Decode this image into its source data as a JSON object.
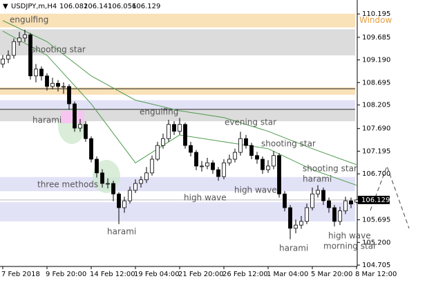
{
  "chart_data": {
    "type": "candlestick",
    "symbol": "USDJPY,m,H4",
    "header_values": [
      106.082,
      106.141,
      106.056,
      106.129
    ],
    "categories": [
      "7 Feb 2018",
      null,
      null,
      null,
      null,
      null,
      null,
      null,
      "9 Feb 20:00",
      null,
      null,
      null,
      null,
      null,
      null,
      null,
      "14 Feb 12:00",
      null,
      null,
      null,
      null,
      null,
      null,
      null,
      "19 Feb 04:00",
      null,
      null,
      null,
      null,
      null,
      null,
      null,
      "21 Feb 20:00",
      null,
      null,
      null,
      null,
      null,
      null,
      null,
      "26 Feb 12:00",
      null,
      null,
      null,
      null,
      null,
      null,
      null,
      "1 Mar 04:00",
      null,
      null,
      null,
      null,
      null,
      null,
      null,
      "5 Mar 20:00",
      null,
      null,
      null,
      null,
      null,
      null,
      null,
      "8 Mar 12:00"
    ],
    "open": [
      109.1,
      109.21,
      109.29,
      109.59,
      109.67,
      109.74,
      108.84,
      108.99,
      108.84,
      108.61,
      108.68,
      108.61,
      108.61,
      108.23,
      107.7,
      107.78,
      107.47,
      107.02,
      106.72,
      106.49,
      106.49,
      106.26,
      105.96,
      106.11,
      106.34,
      106.49,
      106.57,
      106.72,
      107.02,
      107.32,
      107.47,
      107.78,
      107.63,
      107.78,
      107.32,
      107.17,
      106.87,
      106.87,
      106.94,
      106.79,
      106.64,
      106.94,
      107.02,
      107.17,
      107.47,
      107.32,
      107.1,
      107.02,
      106.79,
      106.87,
      107.1,
      106.26,
      105.96,
      105.51,
      105.58,
      105.66,
      105.96,
      106.26,
      106.34,
      106.11,
      105.96,
      105.66,
      105.89,
      106.11,
      106.082
    ],
    "high": [
      109.3,
      109.4,
      109.66,
      109.8,
      109.85,
      109.78,
      109.1,
      109.05,
      108.9,
      108.8,
      108.75,
      108.7,
      108.66,
      108.28,
      107.9,
      107.85,
      107.52,
      107.08,
      106.8,
      106.6,
      106.55,
      106.3,
      106.2,
      106.42,
      106.58,
      106.65,
      106.85,
      107.1,
      107.4,
      107.58,
      107.88,
      107.85,
      107.92,
      107.82,
      107.4,
      107.22,
      106.98,
      107.05,
      107.0,
      106.85,
      107.02,
      107.12,
      107.25,
      107.62,
      107.55,
      107.38,
      107.18,
      107.08,
      107.0,
      107.2,
      107.15,
      106.32,
      106.02,
      105.7,
      105.78,
      106.05,
      106.4,
      106.45,
      106.4,
      106.18,
      106.02,
      105.98,
      106.2,
      106.18,
      106.141
    ],
    "low": [
      109.02,
      109.12,
      109.22,
      109.5,
      109.58,
      108.76,
      108.7,
      108.74,
      108.52,
      108.55,
      108.5,
      108.45,
      108.1,
      107.62,
      107.62,
      107.4,
      106.95,
      106.62,
      106.4,
      106.38,
      106.1,
      105.6,
      105.85,
      106.05,
      106.28,
      106.4,
      106.5,
      106.66,
      106.98,
      107.25,
      107.4,
      107.55,
      107.56,
      107.25,
      107.08,
      106.78,
      106.75,
      106.8,
      106.7,
      106.55,
      106.58,
      106.88,
      106.95,
      107.1,
      107.25,
      107.02,
      106.92,
      106.7,
      106.72,
      106.8,
      106.18,
      105.88,
      105.27,
      105.4,
      105.5,
      105.6,
      105.9,
      106.18,
      106.02,
      105.85,
      105.55,
      105.58,
      105.82,
      105.95,
      106.056
    ],
    "close": [
      109.21,
      109.29,
      109.59,
      109.67,
      109.74,
      108.84,
      108.99,
      108.84,
      108.61,
      108.68,
      108.61,
      108.61,
      108.23,
      107.7,
      107.78,
      107.47,
      107.02,
      106.72,
      106.49,
      106.49,
      106.26,
      105.96,
      106.11,
      106.34,
      106.49,
      106.57,
      106.72,
      107.02,
      107.32,
      107.47,
      107.78,
      107.63,
      107.78,
      107.32,
      107.17,
      106.87,
      106.87,
      106.94,
      106.79,
      106.64,
      106.94,
      107.02,
      107.17,
      107.47,
      107.32,
      107.1,
      107.02,
      106.79,
      106.87,
      107.1,
      106.26,
      105.96,
      105.51,
      105.58,
      105.66,
      105.96,
      106.26,
      106.34,
      106.11,
      105.96,
      105.66,
      105.89,
      106.11,
      106.04,
      106.129
    ],
    "ma": [
      {
        "color": "#4d9a4d",
        "x": [
          0,
          8,
          16,
          24,
          32,
          40,
          48,
          56,
          64
        ],
        "values": [
          110.05,
          109.59,
          108.84,
          108.31,
          108.08,
          107.93,
          107.63,
          107.25,
          106.9
        ]
      },
      {
        "color": "#4d9a4d",
        "x": [
          0,
          8,
          16,
          24,
          32,
          40,
          48,
          56,
          64
        ],
        "values": [
          109.82,
          109.29,
          108.23,
          106.94,
          107.55,
          107.4,
          107.25,
          106.79,
          106.45
        ]
      }
    ],
    "zones": [
      {
        "from": 109.9,
        "to": 110.2,
        "color": "#f9e1b8",
        "label": "Window"
      },
      {
        "from": 109.29,
        "to": 109.86,
        "color": "#dcdcdc"
      },
      {
        "from": 108.43,
        "to": 108.59,
        "color": "#f9e1b8"
      },
      {
        "from": 108.12,
        "to": 108.31,
        "color": "#e2e2f7"
      },
      {
        "from": 107.85,
        "to": 108.11,
        "color": "#dcdcdc"
      },
      {
        "from": 106.32,
        "to": 106.63,
        "color": "#e2e2f7"
      },
      {
        "from": 105.66,
        "to": 106.08,
        "color": "#e2e2f7"
      }
    ],
    "hlines": [
      108.56,
      108.11
    ],
    "annotations": [
      "engulfing",
      "shooting star",
      "harami",
      "engulfing",
      "evening star",
      "three methods",
      "shooting star",
      "harami",
      "high wave",
      "high wave",
      "shooting star",
      "harami",
      "harami",
      "high wave",
      "morning star"
    ],
    "ylim": [
      104.675,
      110.5
    ],
    "yticks": [
      110.195,
      109.685,
      {
        "value": 109.19,
        "label": "109.190"
      },
      108.695,
      108.205,
      {
        "value": 107.69,
        "label": "107.690"
      },
      107.195,
      {
        "value": 106.7,
        "label": "106.700"
      },
      105.695,
      {
        "value": 105.2,
        "label": "105.200"
      },
      104.705
    ]
  }
}
